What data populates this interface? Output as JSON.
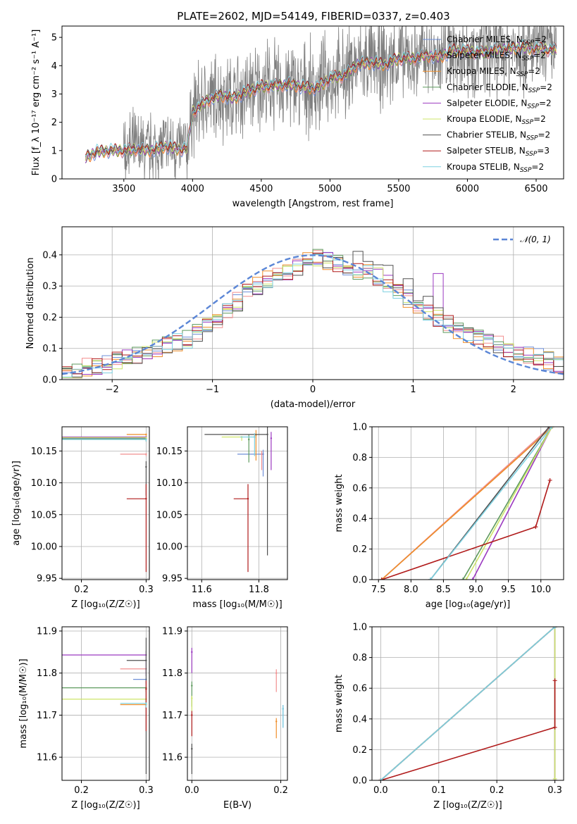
{
  "colors": {
    "chabrier_miles": "#6f8fd8",
    "salpeter_miles": "#f28f8f",
    "kroupa_miles": "#ef8e2a",
    "chabrier_elodie": "#5e9a5e",
    "salpeter_elodie": "#9b39c0",
    "kroupa_elodie": "#cde56a",
    "chabrier_stelib": "#505050",
    "salpeter_stelib": "#b01a1a",
    "kroupa_stelib": "#7dd0e0",
    "data": "#7f7f7f",
    "normal": "#5b86d6"
  },
  "chart_data": [
    {
      "id": "spectrum",
      "type": "line",
      "title": "PLATE=2602, MJD=54149, FIBERID=0337, z=0.403",
      "xlabel": "wavelength [Angstrom, rest frame]",
      "ylabel": "Flux [f_λ 10⁻¹⁷ erg cm⁻² s⁻¹ A⁻¹]",
      "xlim": [
        3050,
        6700
      ],
      "ylim": [
        0,
        5.4
      ],
      "xticks": [
        "3500",
        "4000",
        "4500",
        "5000",
        "5500",
        "6000",
        "6500"
      ],
      "yticks": [
        "0",
        "1",
        "2",
        "3",
        "4",
        "5"
      ],
      "legend": [
        {
          "label": "Chabrier MILES, N",
          "sub": "SSP",
          "tail": "=2",
          "color_key": "chabrier_miles"
        },
        {
          "label": "Salpeter MILES, N",
          "sub": "SSP",
          "tail": "=2",
          "color_key": "salpeter_miles"
        },
        {
          "label": "Kroupa MILES, N",
          "sub": "SSP",
          "tail": "=2",
          "color_key": "kroupa_miles"
        },
        {
          "label": "Chabrier ELODIE, N",
          "sub": "SSP",
          "tail": "=2",
          "color_key": "chabrier_elodie"
        },
        {
          "label": "Salpeter ELODIE, N",
          "sub": "SSP",
          "tail": "=2",
          "color_key": "salpeter_elodie"
        },
        {
          "label": "Kroupa ELODIE, N",
          "sub": "SSP",
          "tail": "=2",
          "color_key": "kroupa_elodie"
        },
        {
          "label": "Chabrier STELIB, N",
          "sub": "SSP",
          "tail": "=2",
          "color_key": "chabrier_stelib"
        },
        {
          "label": "Salpeter STELIB, N",
          "sub": "SSP",
          "tail": "=3",
          "color_key": "salpeter_stelib"
        },
        {
          "label": "Kroupa STELIB, N",
          "sub": "SSP",
          "tail": "=2",
          "color_key": "kroupa_stelib"
        }
      ],
      "continuum": [
        [
          3200,
          0.6
        ],
        [
          3220,
          0.75
        ],
        [
          3300,
          0.95
        ],
        [
          3400,
          1.0
        ],
        [
          3500,
          1.0
        ],
        [
          3600,
          1.05
        ],
        [
          3700,
          1.0
        ],
        [
          3800,
          1.15
        ],
        [
          3900,
          1.05
        ],
        [
          3960,
          1.05
        ],
        [
          4000,
          2.35
        ],
        [
          4100,
          2.75
        ],
        [
          4200,
          2.95
        ],
        [
          4300,
          2.85
        ],
        [
          4400,
          3.1
        ],
        [
          4500,
          3.25
        ],
        [
          4600,
          3.3
        ],
        [
          4700,
          3.35
        ],
        [
          4800,
          3.25
        ],
        [
          4900,
          3.2
        ],
        [
          5000,
          3.55
        ],
        [
          5100,
          3.65
        ],
        [
          5200,
          4.05
        ],
        [
          5300,
          4.1
        ],
        [
          5400,
          4.05
        ],
        [
          5500,
          4.25
        ],
        [
          5600,
          4.25
        ],
        [
          5700,
          4.35
        ],
        [
          5800,
          4.3
        ],
        [
          5900,
          4.55
        ],
        [
          6000,
          4.5
        ],
        [
          6100,
          4.45
        ],
        [
          6200,
          4.55
        ],
        [
          6300,
          4.6
        ],
        [
          6400,
          4.65
        ],
        [
          6500,
          4.6
        ],
        [
          6600,
          4.55
        ]
      ]
    },
    {
      "id": "residuals",
      "type": "line",
      "xlabel": "(data-model)/error",
      "ylabel": "Normed distribution",
      "xlim": [
        -2.5,
        2.5
      ],
      "ylim": [
        0,
        0.49
      ],
      "xticks": [
        "−2",
        "−1",
        "0",
        "1",
        "2"
      ],
      "yticks": [
        "0.0",
        "0.1",
        "0.2",
        "0.3",
        "0.4"
      ],
      "legend": [
        {
          "label": "𝒩(0, 1)",
          "color_key": "normal"
        }
      ],
      "base_hist": [
        0.02,
        0.03,
        0.04,
        0.04,
        0.05,
        0.06,
        0.07,
        0.08,
        0.09,
        0.1,
        0.11,
        0.12,
        0.13,
        0.15,
        0.17,
        0.19,
        0.22,
        0.25,
        0.28,
        0.3,
        0.32,
        0.34,
        0.35,
        0.36,
        0.38,
        0.39,
        0.38,
        0.37,
        0.36,
        0.35,
        0.34,
        0.33,
        0.31,
        0.28,
        0.26,
        0.24,
        0.22,
        0.2,
        0.18,
        0.16,
        0.14,
        0.13,
        0.12,
        0.11,
        0.1,
        0.09,
        0.08,
        0.07,
        0.06,
        0.05
      ]
    },
    {
      "id": "age_vs_Z",
      "type": "scatter",
      "xlabel": "Z [log₁₀(Z/Z☉)]",
      "ylabel": "age  [log₁₀(age/yr)]",
      "xlim": [
        0.17,
        0.305
      ],
      "ylim": [
        9.948,
        10.188
      ],
      "xticks": [
        "0.2",
        "0.3"
      ],
      "yticks": [
        "9.95",
        "10.00",
        "10.05",
        "10.10",
        "10.15"
      ],
      "points": [
        {
          "x": 0.3,
          "y": 10.17,
          "xl": 0.13,
          "yl": 0.002,
          "color_key": "chabrier_miles"
        },
        {
          "x": 0.3,
          "y": 10.145,
          "xl": 0.04,
          "yl": 0.003,
          "color_key": "salpeter_miles"
        },
        {
          "x": 0.3,
          "y": 10.176,
          "xl": 0.03,
          "yl": 0.002,
          "color_key": "kroupa_miles"
        },
        {
          "x": 0.3,
          "y": 10.169,
          "xl": 0.13,
          "yl": 0.004,
          "color_key": "chabrier_elodie"
        },
        {
          "x": 0.3,
          "y": 10.172,
          "xl": 0.13,
          "yl": 0.003,
          "color_key": "salpeter_elodie"
        },
        {
          "x": 0.3,
          "y": 10.171,
          "xl": 0.13,
          "yl": 0.003,
          "color_key": "kroupa_elodie"
        },
        {
          "x": 0.3,
          "y": 10.125,
          "xl": 0.0,
          "yl": 0.045,
          "color_key": "chabrier_stelib"
        },
        {
          "x": 0.3,
          "y": 10.075,
          "xl": 0.03,
          "yl": 0.115,
          "color_key": "salpeter_stelib"
        },
        {
          "x": 0.3,
          "y": 10.168,
          "xl": 0.13,
          "yl": 0.003,
          "color_key": "kroupa_stelib"
        }
      ]
    },
    {
      "id": "age_vs_mass",
      "type": "scatter",
      "xlabel": "mass [log₁₀(M/M☉)]",
      "ylabel": "",
      "xlim": [
        11.55,
        11.9
      ],
      "ylim": [
        9.948,
        10.188
      ],
      "xticks": [
        "11.6",
        "11.8"
      ],
      "yticks": [
        "9.95",
        "10.00",
        "10.05",
        "10.10",
        "10.15"
      ],
      "points": [
        {
          "x": 11.815,
          "y": 10.145,
          "xl": 0.09,
          "yl": 0.035,
          "color_key": "chabrier_miles"
        },
        {
          "x": 11.81,
          "y": 10.145,
          "xl": 0.0,
          "yl": 0.025,
          "color_key": "salpeter_miles"
        },
        {
          "x": 11.79,
          "y": 10.175,
          "xl": 0.0,
          "yl": 0.04,
          "color_key": "kroupa_miles"
        },
        {
          "x": 11.765,
          "y": 10.168,
          "xl": 0.0,
          "yl": 0.036,
          "color_key": "chabrier_elodie"
        },
        {
          "x": 11.843,
          "y": 10.17,
          "xl": 0.0,
          "yl": 0.05,
          "color_key": "salpeter_elodie"
        },
        {
          "x": 11.74,
          "y": 10.172,
          "xl": 0.07,
          "yl": 0.006,
          "color_key": "kroupa_elodie"
        },
        {
          "x": 11.83,
          "y": 10.176,
          "xl": 0.22,
          "yl": 0.19,
          "color_key": "chabrier_stelib"
        },
        {
          "x": 11.762,
          "y": 10.075,
          "xl": 0.05,
          "yl": 0.115,
          "color_key": "salpeter_stelib"
        },
        {
          "x": 11.785,
          "y": 10.172,
          "xl": 0.05,
          "yl": 0.03,
          "color_key": "kroupa_stelib"
        }
      ]
    },
    {
      "id": "massweight_vs_age",
      "type": "line",
      "xlabel": "age  [log₁₀(age/yr)]",
      "ylabel": "mass weight",
      "xlim": [
        7.4,
        10.35
      ],
      "ylim": [
        0,
        1.0
      ],
      "xticks": [
        "7.5",
        "8.0",
        "8.5",
        "9.0",
        "9.5",
        "10.0"
      ],
      "yticks": [
        "0.0",
        "0.2",
        "0.4",
        "0.6",
        "0.8",
        "1.0"
      ],
      "series": [
        {
          "color_key": "chabrier_miles",
          "x": [
            7.55,
            10.17
          ],
          "y": [
            0,
            1.0
          ]
        },
        {
          "color_key": "salpeter_miles",
          "x": [
            7.55,
            10.145
          ],
          "y": [
            0,
            1.0
          ]
        },
        {
          "color_key": "kroupa_miles",
          "x": [
            7.55,
            10.176
          ],
          "y": [
            0,
            1.0
          ]
        },
        {
          "color_key": "chabrier_elodie",
          "x": [
            8.8,
            10.168
          ],
          "y": [
            0,
            1.0
          ]
        },
        {
          "color_key": "salpeter_elodie",
          "x": [
            8.95,
            10.17
          ],
          "y": [
            0,
            1.0
          ]
        },
        {
          "color_key": "kroupa_elodie",
          "x": [
            8.85,
            10.172
          ],
          "y": [
            0,
            1.0
          ]
        },
        {
          "color_key": "chabrier_stelib",
          "x": [
            8.3,
            10.125
          ],
          "y": [
            0,
            1.0
          ]
        },
        {
          "color_key": "salpeter_stelib",
          "x": [
            7.55,
            9.92,
            10.14
          ],
          "y": [
            0,
            0.345,
            0.65
          ]
        },
        {
          "color_key": "kroupa_stelib",
          "x": [
            8.3,
            10.168
          ],
          "y": [
            0,
            1.0
          ]
        }
      ]
    },
    {
      "id": "mass_vs_Z",
      "type": "scatter",
      "xlabel": "Z [log₁₀(Z/Z☉)]",
      "ylabel": "mass [log₁₀(M/M☉)]",
      "xlim": [
        0.17,
        0.305
      ],
      "ylim": [
        11.545,
        11.91
      ],
      "xticks": [
        "0.2",
        "0.3"
      ],
      "yticks": [
        "11.6",
        "11.7",
        "11.8",
        "11.9"
      ],
      "points": [
        {
          "x": 0.3,
          "y": 11.785,
          "xl": 0.02,
          "yl": 0.01,
          "color_key": "chabrier_miles"
        },
        {
          "x": 0.3,
          "y": 11.81,
          "xl": 0.04,
          "yl": 0.01,
          "color_key": "salpeter_miles"
        },
        {
          "x": 0.3,
          "y": 11.725,
          "xl": 0.04,
          "yl": 0.01,
          "color_key": "kroupa_miles"
        },
        {
          "x": 0.3,
          "y": 11.765,
          "xl": 0.13,
          "yl": 0.01,
          "color_key": "chabrier_elodie"
        },
        {
          "x": 0.3,
          "y": 11.843,
          "xl": 0.13,
          "yl": 0.05,
          "color_key": "salpeter_elodie"
        },
        {
          "x": 0.3,
          "y": 11.738,
          "xl": 0.13,
          "yl": 0.01,
          "color_key": "kroupa_elodie"
        },
        {
          "x": 0.3,
          "y": 11.83,
          "xl": 0.03,
          "yl": 0.27,
          "color_key": "chabrier_stelib"
        },
        {
          "x": 0.3,
          "y": 11.762,
          "xl": 0.0,
          "yl": 0.1,
          "color_key": "salpeter_stelib"
        },
        {
          "x": 0.3,
          "y": 11.728,
          "xl": 0.04,
          "yl": 0.01,
          "color_key": "kroupa_stelib"
        }
      ]
    },
    {
      "id": "mass_vs_EBV",
      "type": "scatter",
      "xlabel": "E(B-V)",
      "ylabel": "",
      "xlim": [
        -0.01,
        0.215
      ],
      "ylim": [
        11.545,
        11.91
      ],
      "xticks": [
        "0.0",
        "0.2"
      ],
      "yticks": [
        "11.6",
        "11.7",
        "11.8",
        "11.9"
      ],
      "points": [
        {
          "x": 0.205,
          "y": 11.715,
          "yl": 0.045,
          "color_key": "chabrier_miles"
        },
        {
          "x": 0.19,
          "y": 11.8,
          "yl": 0.045,
          "color_key": "salpeter_miles"
        },
        {
          "x": 0.19,
          "y": 11.685,
          "yl": 0.04,
          "color_key": "kroupa_miles"
        },
        {
          "x": 0.0,
          "y": 11.77,
          "yl": 0.05,
          "color_key": "chabrier_elodie"
        },
        {
          "x": 0.0,
          "y": 11.85,
          "yl": 0.05,
          "color_key": "salpeter_elodie"
        },
        {
          "x": 0.0,
          "y": 11.74,
          "yl": 0.03,
          "color_key": "kroupa_elodie"
        },
        {
          "x": 0.0,
          "y": 11.62,
          "yl": 0.06,
          "color_key": "chabrier_stelib"
        },
        {
          "x": 0.0,
          "y": 11.7,
          "yl": 0.05,
          "color_key": "salpeter_stelib"
        },
        {
          "x": 0.205,
          "y": 11.715,
          "yl": 0.045,
          "color_key": "kroupa_stelib"
        }
      ]
    },
    {
      "id": "massweight_vs_Z",
      "type": "line",
      "xlabel": "Z [log₁₀(Z/Z☉)]",
      "ylabel": "mass weight",
      "xlim": [
        -0.015,
        0.315
      ],
      "ylim": [
        0,
        1.0
      ],
      "xticks": [
        "0.0",
        "0.1",
        "0.2",
        "0.3"
      ],
      "yticks": [
        "0.0",
        "0.2",
        "0.4",
        "0.6",
        "0.8",
        "1.0"
      ],
      "series": [
        {
          "color_key": "chabrier_miles",
          "x": [
            0.0,
            0.3
          ],
          "y": [
            0,
            1.0
          ]
        },
        {
          "color_key": "salpeter_miles",
          "x": [
            0.0,
            0.3
          ],
          "y": [
            0,
            1.0
          ]
        },
        {
          "color_key": "kroupa_miles",
          "x": [
            0.0,
            0.3
          ],
          "y": [
            0,
            1.0
          ]
        },
        {
          "color_key": "chabrier_elodie",
          "x": [
            0.3,
            0.3
          ],
          "y": [
            0,
            1.0
          ]
        },
        {
          "color_key": "salpeter_elodie",
          "x": [
            0.3,
            0.3
          ],
          "y": [
            0,
            1.0
          ]
        },
        {
          "color_key": "kroupa_elodie",
          "x": [
            0.3,
            0.3
          ],
          "y": [
            0.01,
            1.0
          ]
        },
        {
          "color_key": "chabrier_stelib",
          "x": [
            0.0,
            0.3
          ],
          "y": [
            0,
            1.0
          ]
        },
        {
          "color_key": "salpeter_stelib",
          "x": [
            0.0,
            0.3,
            0.3
          ],
          "y": [
            0,
            0.345,
            0.65
          ]
        },
        {
          "color_key": "kroupa_stelib",
          "x": [
            0.0,
            0.3
          ],
          "y": [
            0,
            1.0
          ]
        }
      ]
    }
  ]
}
